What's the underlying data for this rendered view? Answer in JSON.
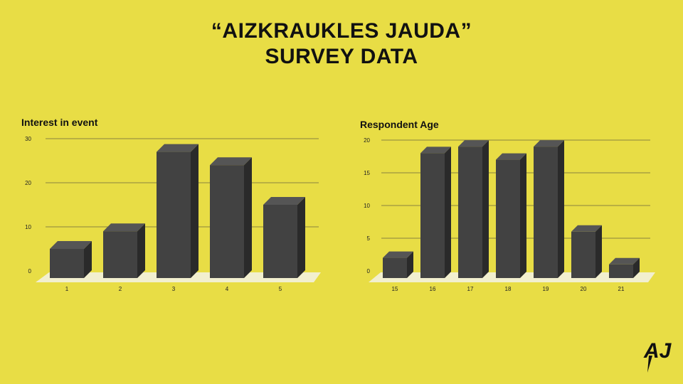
{
  "title": {
    "line1": "“AIZKRAUKLES JAUDA”",
    "line2": "SURVEY DATA"
  },
  "logo": {
    "text": "AJ"
  },
  "colors": {
    "background": "#e8dd45",
    "bar_front": "#424242",
    "bar_top": "#555555",
    "bar_side": "#2a2a2a",
    "floor": "#f2efcf",
    "grid": "#8a8440"
  },
  "chart_data": [
    {
      "type": "bar",
      "title": "Interest in event",
      "categories": [
        "1",
        "2",
        "3",
        "4",
        "5"
      ],
      "values": [
        5,
        9,
        27,
        24,
        15
      ],
      "ylim": [
        0,
        30
      ],
      "yticks": [
        0,
        10,
        20,
        30
      ],
      "grid": true,
      "xlabel": "",
      "ylabel": ""
    },
    {
      "type": "bar",
      "title": "Respondent Age",
      "categories": [
        "15",
        "16",
        "17",
        "18",
        "19",
        "20",
        "21"
      ],
      "values": [
        2,
        18,
        19,
        17,
        19,
        6,
        1
      ],
      "ylim": [
        0,
        20
      ],
      "yticks": [
        0,
        5,
        10,
        15,
        20
      ],
      "grid": true,
      "xlabel": "",
      "ylabel": ""
    }
  ]
}
